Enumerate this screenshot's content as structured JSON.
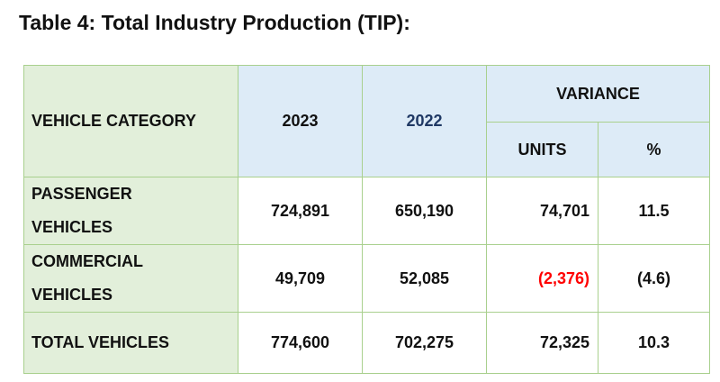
{
  "title": "Table 4: Total Industry Production (TIP):",
  "table": {
    "header": {
      "category": "VEHICLE CATEGORY",
      "year_current": "2023",
      "year_previous": "2022",
      "variance": "VARIANCE",
      "units": "UNITS",
      "percent": "%"
    },
    "rows": [
      {
        "category_line1": "PASSENGER",
        "category_line2": "VEHICLES",
        "value_2023": "724,891",
        "value_2022": "650,190",
        "variance_units": "74,701",
        "variance_percent": "11.5"
      },
      {
        "category_line1": "COMMERCIAL",
        "category_line2": "VEHICLES",
        "value_2023": "49,709",
        "value_2022": "52,085",
        "variance_units": "(2,376)",
        "variance_percent": "(4.6)"
      },
      {
        "category_line1": "TOTAL VEHICLES",
        "category_line2": "",
        "value_2023": "774,600",
        "value_2022": "702,275",
        "variance_units": "72,325",
        "variance_percent": "10.3"
      }
    ]
  },
  "colors": {
    "header_category_bg": "#e2efda",
    "header_year_bg": "#ddebf7",
    "border": "#a9d08e",
    "year_2022_text": "#1f3864",
    "negative_units_text": "#ff0000"
  }
}
